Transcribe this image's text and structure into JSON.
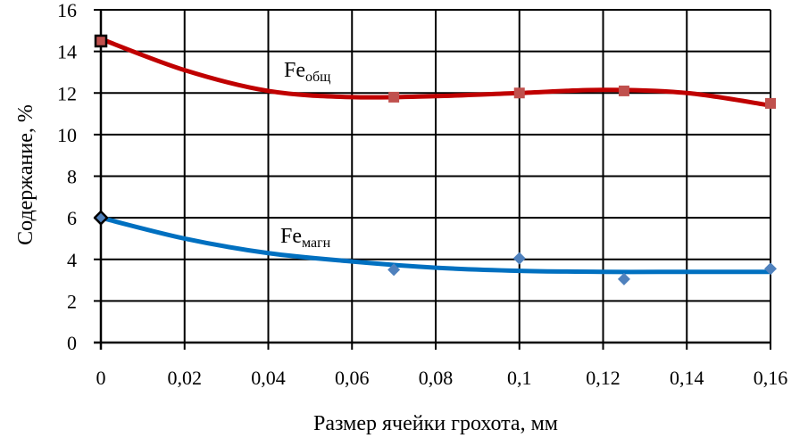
{
  "chart_data": {
    "type": "scatter",
    "xlabel": "Размер ячейки грохота, мм",
    "ylabel": "Содержание, %",
    "xlim": [
      0,
      0.16
    ],
    "ylim": [
      0,
      16
    ],
    "x_ticks": [
      "0",
      "0,02",
      "0,04",
      "0,06",
      "0,08",
      "0,1",
      "0,12",
      "0,14",
      "0,16"
    ],
    "y_ticks": [
      "0",
      "2",
      "4",
      "6",
      "8",
      "10",
      "12",
      "14",
      "16"
    ],
    "grid": true,
    "series": [
      {
        "name": "Feобщ",
        "label_main": "Fe",
        "label_sub": "общ",
        "color": "#c00000",
        "marker_color": "#c0504d",
        "marker": "square",
        "x": [
          0,
          0.07,
          0.1,
          0.125,
          0.16
        ],
        "y": [
          14.5,
          11.8,
          12.0,
          12.1,
          11.5
        ],
        "trend_x": [
          0,
          0.02,
          0.04,
          0.06,
          0.08,
          0.1,
          0.12,
          0.14,
          0.16
        ],
        "trend_y": [
          14.6,
          13.1,
          12.1,
          11.8,
          11.85,
          12.0,
          12.15,
          12.0,
          11.4
        ]
      },
      {
        "name": "Feмагн",
        "label_main": "Fe",
        "label_sub": "магн",
        "color": "#0070c0",
        "marker_color": "#4f81bd",
        "marker": "diamond",
        "x": [
          0,
          0.07,
          0.1,
          0.125,
          0.16
        ],
        "y": [
          6.0,
          3.5,
          4.05,
          3.05,
          3.55
        ],
        "trend_x": [
          0,
          0.02,
          0.04,
          0.06,
          0.08,
          0.1,
          0.12,
          0.14,
          0.16
        ],
        "trend_y": [
          6.0,
          5.0,
          4.3,
          3.9,
          3.6,
          3.45,
          3.4,
          3.4,
          3.4
        ]
      }
    ]
  }
}
